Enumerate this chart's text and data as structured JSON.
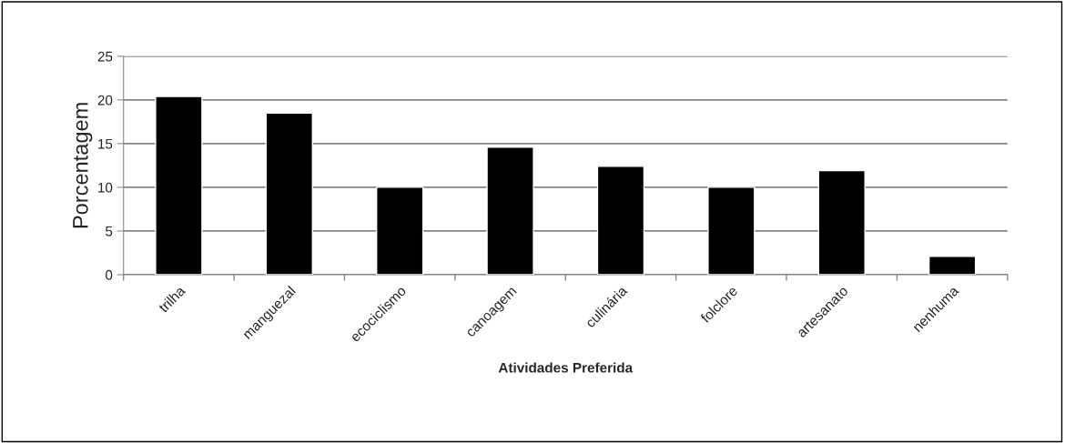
{
  "chart_data": {
    "type": "bar",
    "xlabel": "Atividades Preferida",
    "ylabel": "Porcentagem",
    "categories": [
      "trilha",
      "manguezal",
      "ecociclismo",
      "canoagem",
      "culinária",
      "folclore",
      "artesanato",
      "nenhuma"
    ],
    "values": [
      20.4,
      18.5,
      10,
      14.6,
      12.4,
      10,
      11.9,
      2.1
    ],
    "color": "#000000",
    "ylim": [
      0,
      25
    ],
    "yticks": [
      0,
      5,
      10,
      15,
      20,
      25
    ],
    "grid": "y",
    "legend": false
  }
}
